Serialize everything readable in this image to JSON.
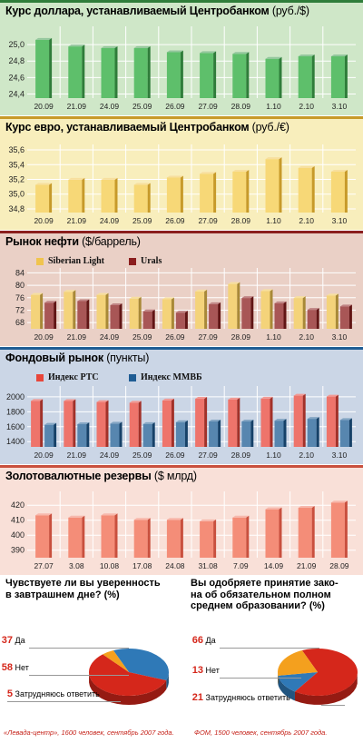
{
  "chart_data": [
    {
      "type": "bar",
      "title": "Курс доллара, устанавливаемый Центробанком",
      "unit": "(руб./$)",
      "categories": [
        "20.09",
        "21.09",
        "24.09",
        "25.09",
        "26.09",
        "27.09",
        "28.09",
        "1.10",
        "2.10",
        "3.10"
      ],
      "series": [
        {
          "values": [
            25.08,
            25.0,
            24.98,
            24.98,
            24.93,
            24.92,
            24.91,
            24.85,
            24.88,
            24.88
          ],
          "color": "#3d9a4c"
        }
      ],
      "ylim": [
        24.35,
        25.2
      ],
      "yticks": [
        "25,0",
        "24,8",
        "24,6",
        "24,4"
      ],
      "ytick_values": [
        25.0,
        24.8,
        24.6,
        24.4
      ],
      "bg": "#cfe7c8",
      "bar_light": "#5ebf6b",
      "bar_dark": "#2f7d3a"
    },
    {
      "type": "bar",
      "title": "Курс евро, устанавливаемый Центробанком",
      "unit": "(руб./€)",
      "categories": [
        "20.09",
        "21.09",
        "24.09",
        "25.09",
        "26.09",
        "27.09",
        "28.09",
        "1.10",
        "2.10",
        "3.10"
      ],
      "series": [
        {
          "values": [
            35.15,
            35.22,
            35.22,
            35.15,
            35.25,
            35.3,
            35.33,
            35.5,
            35.38,
            35.33
          ],
          "color": "#f0c44e"
        }
      ],
      "ylim": [
        34.75,
        35.65
      ],
      "yticks": [
        "35,6",
        "35,4",
        "35,2",
        "35,0",
        "34,8"
      ],
      "ytick_values": [
        35.6,
        35.4,
        35.2,
        35.0,
        34.8
      ],
      "bg": "#f8eebc",
      "bar_light": "#f7d877",
      "bar_dark": "#c79a2a"
    },
    {
      "type": "bar",
      "title": "Рынок нефти",
      "unit": "($/баррель)",
      "categories": [
        "20.09",
        "21.09",
        "24.09",
        "25.09",
        "26.09",
        "27.09",
        "28.09",
        "1.10",
        "2.10",
        "3.10"
      ],
      "series": [
        {
          "name": "Siberian Light",
          "values": [
            77.5,
            78.5,
            77.5,
            76.3,
            76.1,
            78.6,
            81.0,
            78.7,
            76.5,
            77.3
          ],
          "color": "#f0c44e"
        },
        {
          "name": "Urals",
          "values": [
            75.0,
            75.5,
            74.2,
            72.2,
            71.8,
            74.5,
            76.5,
            74.8,
            72.7,
            73.8
          ],
          "color": "#8b1e1e"
        }
      ],
      "ylim": [
        66,
        85
      ],
      "yticks": [
        "84",
        "80",
        "76",
        "72",
        "68"
      ],
      "ytick_values": [
        84,
        80,
        76,
        72,
        68
      ],
      "bg": "#ead0c6",
      "legend_position": "top-left"
    },
    {
      "type": "bar",
      "title": "Фондовый рынок",
      "unit": "(пункты)",
      "categories": [
        "20.09",
        "21.09",
        "24.09",
        "25.09",
        "26.09",
        "27.09",
        "28.09",
        "1.10",
        "2.10",
        "3.10"
      ],
      "series": [
        {
          "name": "Индекс РТС",
          "values": [
            1970,
            1968,
            1955,
            1945,
            1975,
            1998,
            1988,
            2000,
            2040,
            2028
          ],
          "color": "#e8463a"
        },
        {
          "name": "Индекс ММВБ",
          "values": [
            1650,
            1658,
            1665,
            1660,
            1685,
            1695,
            1695,
            1705,
            1730,
            1715
          ],
          "color": "#1f5d94"
        }
      ],
      "ylim": [
        1330,
        2120
      ],
      "yticks": [
        "2000",
        "1800",
        "1600",
        "1400"
      ],
      "ytick_values": [
        2000,
        1800,
        1600,
        1400
      ],
      "bg": "#cbd6e6",
      "legend_position": "top-left"
    },
    {
      "type": "bar",
      "title": "Золотовалютные резервы",
      "unit": "($ млрд)",
      "categories": [
        "27.07",
        "3.08",
        "10.08",
        "17.08",
        "24.08",
        "31.08",
        "7.09",
        "14.09",
        "21.09",
        "28.09"
      ],
      "series": [
        {
          "values": [
            414.5,
            413.0,
            414.5,
            411.5,
            411.5,
            410.5,
            413.0,
            418.5,
            419.5,
            423.0
          ],
          "color": "#f07d68"
        }
      ],
      "ylim": [
        385,
        428
      ],
      "yticks": [
        "420",
        "410",
        "400",
        "390"
      ],
      "ytick_values": [
        420,
        410,
        400,
        390
      ],
      "bg": "#f9e0d8",
      "bar_light": "#f48d78",
      "bar_dark": "#c9503e"
    },
    {
      "type": "pie",
      "title": "Чувствуете ли вы уверенность в завтрашнем дне? (%)",
      "categories": [
        "Да",
        "Нет",
        "Затрудняюсь ответить"
      ],
      "values": [
        37,
        58,
        5
      ],
      "colors": [
        "#2f79b7",
        "#d5271b",
        "#f4a01e"
      ],
      "source": "«Левада-центр», 1600 человек, сентябрь 2007 года."
    },
    {
      "type": "pie",
      "title": "Вы одобряете принятие закона об обязательном полном среднем образовании? (%)",
      "categories": [
        "Да",
        "Нет",
        "Затрудняюсь ответить"
      ],
      "values": [
        66,
        13,
        21
      ],
      "colors": [
        "#d5271b",
        "#2f79b7",
        "#f4a01e"
      ],
      "source": "ФОМ, 1500 человек, сентябрь 2007 года."
    }
  ],
  "poll1": {
    "q_line1": "Чувствуете ли вы уверенность",
    "q_line2": "в завтрашнем дне? (%)",
    "rows": [
      {
        "num": "37",
        "label": "Да"
      },
      {
        "num": "58",
        "label": "Нет"
      },
      {
        "num": "5",
        "label": "Затрудняюсь ответить"
      }
    ],
    "source": "«Левада-центр», 1600 человек, сентябрь 2007 года."
  },
  "poll2": {
    "q_line1": "Вы одобряете принятие зако-",
    "q_line2": "на об обязательном полном",
    "q_line3": "среднем образовании? (%)",
    "rows": [
      {
        "num": "66",
        "label": "Да"
      },
      {
        "num": "13",
        "label": "Нет"
      },
      {
        "num": "21",
        "label": "Затрудняюсь ответить"
      }
    ],
    "source": "ФОМ, 1500 человек, сентябрь 2007 года."
  }
}
